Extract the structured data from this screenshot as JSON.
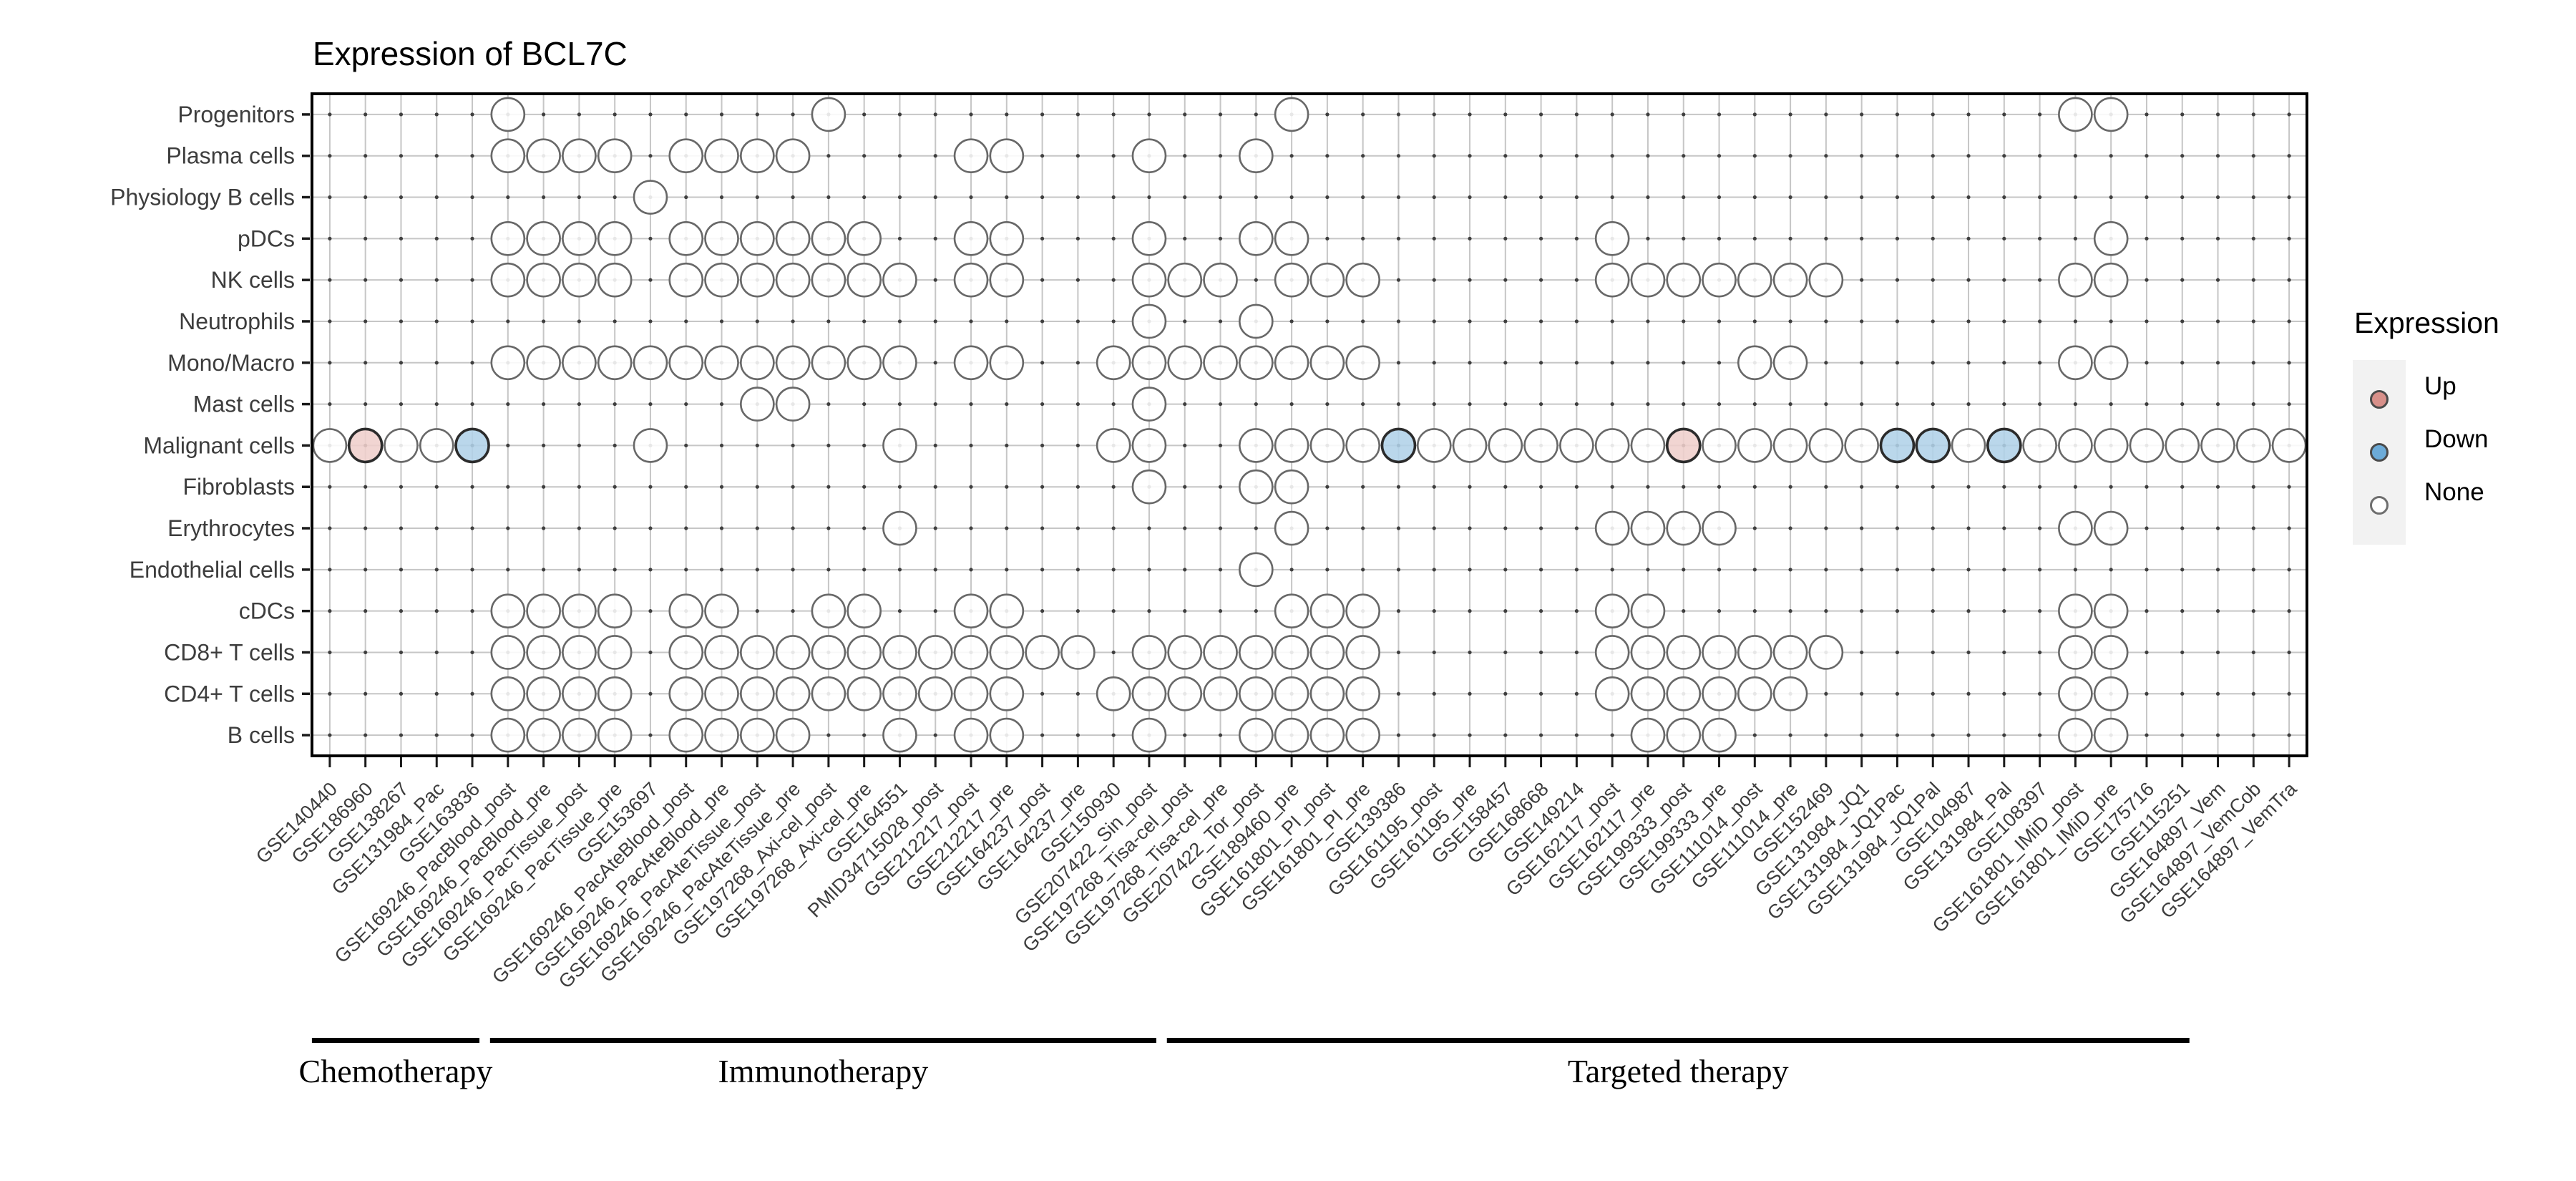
{
  "title": "Expression of BCL7C",
  "legend": {
    "title": "Expression",
    "items": [
      {
        "label": "Up",
        "state": "u"
      },
      {
        "label": "Down",
        "state": "d"
      },
      {
        "label": "None",
        "state": "o"
      }
    ]
  },
  "chart_data": {
    "type": "dot-matrix",
    "title": "Expression of BCL7C",
    "legend_title": "Expression",
    "cell_states": {
      "o": "None",
      "u": "Up",
      "d": "Down",
      ".": "no data"
    },
    "rows": [
      "Progenitors",
      "Plasma cells",
      "Physiology B cells",
      "pDCs",
      "NK cells",
      "Neutrophils",
      "Mono/Macro",
      "Mast cells",
      "Malignant cells",
      "Fibroblasts",
      "Erythrocytes",
      "Endothelial cells",
      "cDCs",
      "CD8+ T cells",
      "CD4+ T cells",
      "B cells"
    ],
    "columns": [
      "GSE140440",
      "GSE186960",
      "GSE138267",
      "GSE131984_Pac",
      "GSE163836",
      "GSE169246_PacBlood_post",
      "GSE169246_PacBlood_pre",
      "GSE169246_PacTissue_post",
      "GSE169246_PacTissue_pre",
      "GSE153697",
      "GSE169246_PacAteBlood_post",
      "GSE169246_PacAteBlood_pre",
      "GSE169246_PacAteTissue_post",
      "GSE169246_PacAteTissue_pre",
      "GSE197268_Axi-cel_post",
      "GSE197268_Axi-cel_pre",
      "GSE164551",
      "PMID34715028_post",
      "GSE212217_post",
      "GSE212217_pre",
      "GSE164237_post",
      "GSE164237_pre",
      "GSE150930",
      "GSE207422_Sin_post",
      "GSE197268_Tisa-cel_post",
      "GSE197268_Tisa-cel_pre",
      "GSE207422_Tor_post",
      "GSE189460_pre",
      "GSE161801_PI_post",
      "GSE161801_PI_pre",
      "GSE139386",
      "GSE161195_post",
      "GSE161195_pre",
      "GSE158457",
      "GSE168668",
      "GSE149214",
      "GSE162117_post",
      "GSE162117_pre",
      "GSE199333_post",
      "GSE199333_pre",
      "GSE111014_post",
      "GSE111014_pre",
      "GSE152469",
      "GSE131984_JQ1",
      "GSE131984_JQ1Pac",
      "GSE131984_JQ1Pal",
      "GSE104987",
      "GSE131984_Pal",
      "GSE108397",
      "GSE161801_IMiD_post",
      "GSE161801_IMiD_pre",
      "GSE175716",
      "GSE115251",
      "GSE164897_Vem",
      "GSE164897_VemCob",
      "GSE164897_VemTra"
    ],
    "matrix": [
      ".....o........o............o.....................oo.....",
      ".....oooo.oooo....oo...o..o.............................",
      ".........o..............................................",
      ".....oooo.oooooo..oo...o..oo........o.............o.....",
      ".....oooo.ooooooo.oo...ooo.ooo......ooooooo......oo.....",
      ".......................o..o.............................",
      ".....oooooooooooo.oo..oooooooo..........oo.......oo.....",
      "............oo.........o................................",
      "ouood....o......o.....oo..oooodooooooouoooooddodoooooooo",
      ".......................o..oo............................",
      "................o..........o........oooo.........oo.....",
      "..........................o.............................",
      ".....oooo.oo..oo..oo.......ooo......oo...........oo.....",
      ".....oooo.oooooooooooo.ooooooo......ooooooo......oo.....",
      ".....oooo.oooooooooo..oooooooo......oooooo.......oo.....",
      ".....oooo.oooo..o.oo...o..oooo.......ooo.........oo....."
    ],
    "groups": [
      {
        "label": "Chemotherapy",
        "col_start": 1,
        "col_end": 5
      },
      {
        "label": "Immunotherapy",
        "col_start": 6,
        "col_end": 24
      },
      {
        "label": "Targeted therapy",
        "col_start": 25,
        "col_end": 53
      }
    ],
    "colors": {
      "up_fill": "#efcfcc",
      "down_fill": "#b0d2e8",
      "none_fill": "#ffffff",
      "legend_up": "#d8908a",
      "legend_down": "#6cabd8",
      "legend_none": "#ffffff",
      "circle_stroke": "#2b2b2b",
      "none_stroke": "#686868",
      "grid": "#c6c6c6",
      "dot": "#3f3f3f",
      "border": "#000000",
      "axis_text": "#3d3d3d"
    },
    "legend_position": "right",
    "grid": true
  }
}
